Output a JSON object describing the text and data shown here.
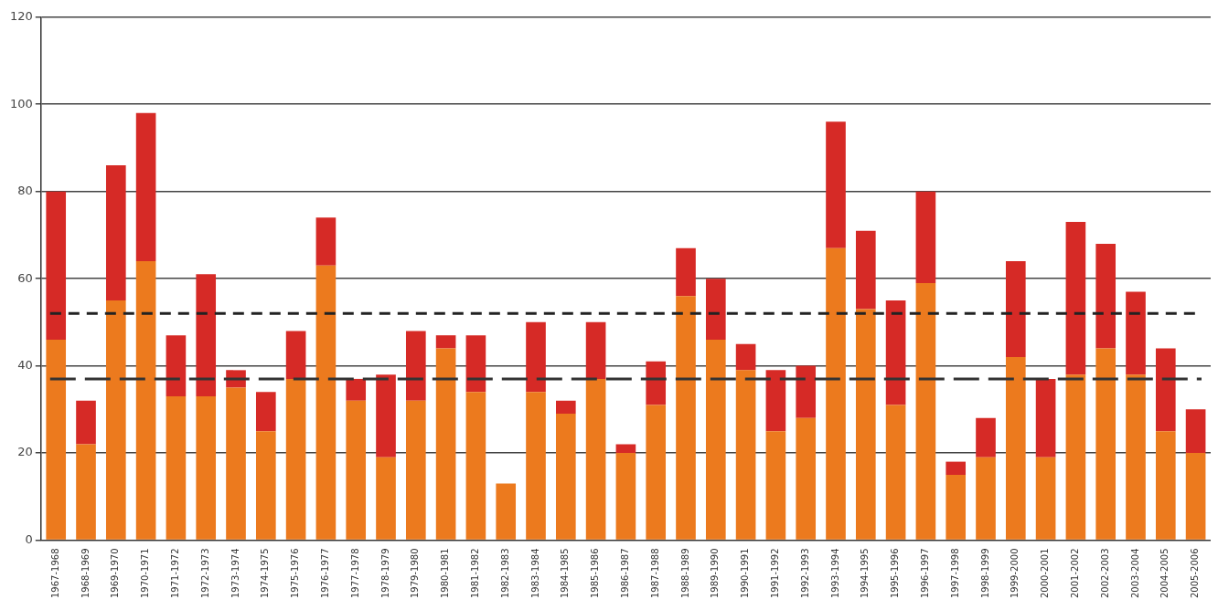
{
  "chart_data": {
    "type": "bar",
    "stacked": true,
    "categories": [
      "1967-1968",
      "1968-1969",
      "1969-1970",
      "1970-1971",
      "1971-1972",
      "1972-1973",
      "1973-1974",
      "1974-1975",
      "1975-1976",
      "1976-1977",
      "1977-1978",
      "1978-1979",
      "1979-1980",
      "1980-1981",
      "1981-1982",
      "1982-1983",
      "1983-1984",
      "1984-1985",
      "1985-1986",
      "1986-1987",
      "1987-1988",
      "1988-1989",
      "1989-1990",
      "1990-1991",
      "1991-1992",
      "1992-1993",
      "1993-1994",
      "1994-1995",
      "1995-1996",
      "1996-1997",
      "1997-1998",
      "1998-1999",
      "1999-2000",
      "2000-2001",
      "2001-2002",
      "2002-2003",
      "2003-2004",
      "2004-2005",
      "2005-2006"
    ],
    "series": [
      {
        "color": "#ec7a1e",
        "values": [
          46,
          22,
          55,
          64,
          33,
          33,
          35,
          25,
          37,
          63,
          32,
          19,
          32,
          44,
          34,
          13,
          34,
          29,
          37,
          20,
          31,
          56,
          46,
          39,
          25,
          28,
          67,
          53,
          31,
          59,
          15,
          19,
          42,
          19,
          38,
          44,
          38,
          25,
          20
        ]
      },
      {
        "color": "#d62a26",
        "values": [
          34,
          10,
          31,
          34,
          14,
          28,
          4,
          9,
          11,
          11,
          5,
          19,
          16,
          3,
          13,
          0,
          16,
          3,
          13,
          2,
          10,
          11,
          14,
          6,
          14,
          12,
          29,
          18,
          24,
          21,
          3,
          9,
          22,
          18,
          35,
          24,
          19,
          19,
          10
        ]
      }
    ],
    "ylim": [
      0,
      120
    ],
    "yticks": [
      0,
      20,
      40,
      60,
      80,
      100,
      120
    ],
    "grid": "y",
    "legend": false,
    "ref_lines": [
      {
        "axis": "y",
        "value": 52,
        "line_style": "dashed",
        "color": "#222222"
      },
      {
        "axis": "y",
        "value": 37,
        "line_style": "long-dashed",
        "color": "#333333"
      }
    ]
  }
}
